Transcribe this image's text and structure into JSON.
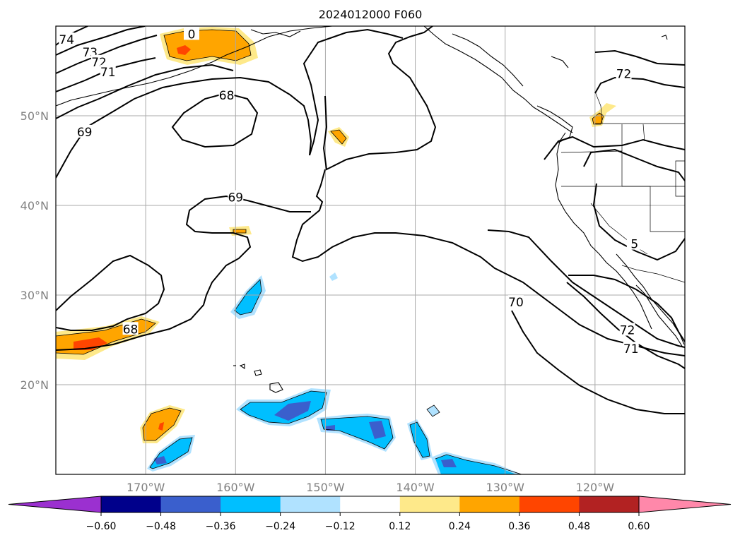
{
  "title": "2024012000 F060",
  "map": {
    "lat_labels": [
      {
        "lat": 50,
        "text": "50°N"
      },
      {
        "lat": 40,
        "text": "40°N"
      },
      {
        "lat": 30,
        "text": "30°N"
      },
      {
        "lat": 20,
        "text": "20°N"
      }
    ],
    "lon_labels": [
      {
        "lon": -170,
        "text": "170°W"
      },
      {
        "lon": -160,
        "text": "160°W"
      },
      {
        "lon": -150,
        "text": "150°W"
      },
      {
        "lon": -140,
        "text": "140°W"
      },
      {
        "lon": -130,
        "text": "130°W"
      },
      {
        "lon": -120,
        "text": "120°W"
      }
    ],
    "contour_labels": [
      {
        "text": "74",
        "lon": -178.8,
        "lat": 58.5
      },
      {
        "text": "73",
        "lon": -176.2,
        "lat": 57.1
      },
      {
        "text": "72",
        "lon": -175.2,
        "lat": 56.0
      },
      {
        "text": "71",
        "lon": -174.2,
        "lat": 54.9
      },
      {
        "text": "0",
        "lon": -164.9,
        "lat": 59.1
      },
      {
        "text": "68",
        "lon": -161.0,
        "lat": 52.3
      },
      {
        "text": "69",
        "lon": -176.8,
        "lat": 48.2
      },
      {
        "text": "69",
        "lon": -160.0,
        "lat": 40.9
      },
      {
        "text": "68",
        "lon": -171.7,
        "lat": 26.2
      },
      {
        "text": "70",
        "lon": -128.8,
        "lat": 29.2
      },
      {
        "text": "72",
        "lon": -116.8,
        "lat": 54.7
      },
      {
        "text": "72",
        "lon": -116.4,
        "lat": 26.1
      },
      {
        "text": "71",
        "lon": -116.0,
        "lat": 24.0
      },
      {
        "text": "5",
        "lon": -115.6,
        "lat": 35.7
      }
    ]
  },
  "colorbar": {
    "colors": [
      "#9b30d0",
      "#00008b",
      "#3a5fcd",
      "#00bfff",
      "#b0e2ff",
      "#ffffff",
      "#fee98a",
      "#ffa500",
      "#ff4500",
      "#b22222",
      "#ff88aa"
    ],
    "tick_labels": [
      "−0.60",
      "−0.48",
      "−0.36",
      "−0.24",
      "−0.12",
      "0.12",
      "0.24",
      "0.36",
      "0.48",
      "0.60"
    ],
    "values": [
      -0.6,
      -0.48,
      -0.36,
      -0.24,
      -0.12,
      0.12,
      0.24,
      0.36,
      0.48,
      0.6
    ]
  }
}
